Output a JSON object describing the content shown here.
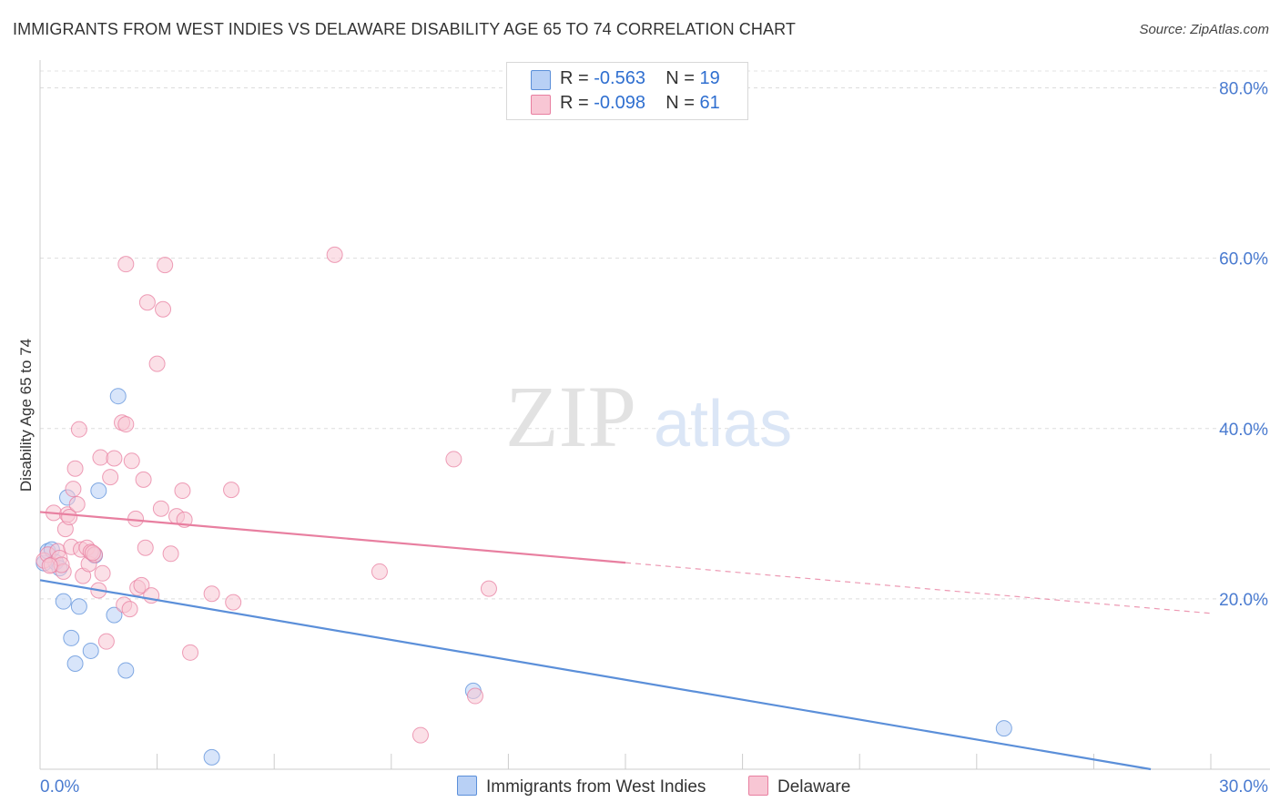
{
  "title": "IMMIGRANTS FROM WEST INDIES VS DELAWARE DISABILITY AGE 65 TO 74 CORRELATION CHART",
  "source": "Source: ZipAtlas.com",
  "watermark": {
    "zip": "ZIP",
    "atlas": "atlas"
  },
  "legend_top": [
    {
      "r_label": "R =",
      "r_value": "-0.563",
      "n_label": "N =",
      "n_value": "19",
      "fill": "#b8d0f5",
      "stroke": "#5b8fd9"
    },
    {
      "r_label": "R =",
      "r_value": "-0.098",
      "n_label": "N =",
      "n_value": "61",
      "fill": "#f8c6d4",
      "stroke": "#e87fa0"
    }
  ],
  "chart_data": {
    "type": "scatter",
    "title": "IMMIGRANTS FROM WEST INDIES VS DELAWARE DISABILITY AGE 65 TO 74 CORRELATION CHART",
    "xlabel": "",
    "ylabel": "Disability Age 65 to 74",
    "xlim": [
      0,
      30
    ],
    "ylim": [
      0,
      80
    ],
    "x_tick_labels": [
      "0.0%",
      "30.0%"
    ],
    "y_ticks": [
      20,
      40,
      60,
      80
    ],
    "y_tick_labels": [
      "20.0%",
      "40.0%",
      "60.0%",
      "80.0%"
    ],
    "grid": true,
    "legend_position": "bottom",
    "series": [
      {
        "name": "Immigrants from West Indies",
        "color": "#5b8fd9",
        "fill": "#b8d0f5",
        "trend": {
          "x0": 0,
          "y0": 22.2,
          "x1": 30,
          "y1": -1.2,
          "dash_from": null
        },
        "points": [
          [
            0.1,
            24.2
          ],
          [
            0.2,
            25.6
          ],
          [
            0.3,
            25.8
          ],
          [
            0.4,
            24.3
          ],
          [
            0.5,
            23.6
          ],
          [
            0.6,
            19.7
          ],
          [
            0.7,
            31.9
          ],
          [
            0.8,
            15.4
          ],
          [
            0.9,
            12.4
          ],
          [
            1.0,
            19.1
          ],
          [
            1.3,
            13.9
          ],
          [
            1.4,
            25.1
          ],
          [
            1.5,
            32.7
          ],
          [
            1.9,
            18.1
          ],
          [
            2.0,
            43.8
          ],
          [
            2.2,
            11.6
          ],
          [
            4.4,
            1.4
          ],
          [
            11.1,
            9.2
          ],
          [
            24.7,
            4.8
          ]
        ]
      },
      {
        "name": "Delaware",
        "color": "#e87fa0",
        "fill": "#f8c6d4",
        "trend": {
          "x0": 0,
          "y0": 30.2,
          "x1": 30,
          "y1": 18.3,
          "dash_from": 15.0
        },
        "points": [
          [
            0.1,
            24.5
          ],
          [
            0.2,
            25.2
          ],
          [
            0.3,
            24.0
          ],
          [
            0.35,
            30.1
          ],
          [
            0.45,
            25.6
          ],
          [
            0.5,
            24.8
          ],
          [
            0.6,
            23.2
          ],
          [
            0.65,
            28.2
          ],
          [
            0.7,
            29.9
          ],
          [
            0.75,
            29.6
          ],
          [
            0.8,
            26.1
          ],
          [
            0.85,
            32.9
          ],
          [
            0.9,
            35.3
          ],
          [
            0.95,
            31.1
          ],
          [
            1.0,
            39.9
          ],
          [
            1.05,
            25.8
          ],
          [
            1.1,
            22.7
          ],
          [
            1.2,
            26.0
          ],
          [
            1.25,
            24.1
          ],
          [
            1.3,
            25.5
          ],
          [
            1.4,
            25.2
          ],
          [
            1.5,
            21.0
          ],
          [
            1.55,
            36.6
          ],
          [
            1.6,
            23.0
          ],
          [
            1.7,
            15.0
          ],
          [
            1.8,
            34.3
          ],
          [
            1.9,
            36.5
          ],
          [
            2.1,
            40.7
          ],
          [
            2.2,
            40.5
          ],
          [
            2.15,
            19.3
          ],
          [
            2.2,
            59.3
          ],
          [
            2.3,
            18.8
          ],
          [
            2.35,
            36.2
          ],
          [
            2.45,
            29.4
          ],
          [
            2.5,
            21.3
          ],
          [
            2.6,
            21.6
          ],
          [
            2.65,
            34.0
          ],
          [
            2.7,
            26.0
          ],
          [
            2.75,
            54.8
          ],
          [
            2.85,
            20.4
          ],
          [
            3.0,
            47.6
          ],
          [
            3.1,
            30.6
          ],
          [
            3.15,
            54.0
          ],
          [
            3.2,
            59.2
          ],
          [
            3.35,
            25.3
          ],
          [
            3.5,
            29.7
          ],
          [
            3.65,
            32.7
          ],
          [
            3.7,
            29.3
          ],
          [
            3.85,
            13.7
          ],
          [
            4.4,
            20.6
          ],
          [
            4.9,
            32.8
          ],
          [
            4.95,
            19.6
          ],
          [
            7.55,
            60.4
          ],
          [
            8.7,
            23.2
          ],
          [
            9.75,
            4.0
          ],
          [
            10.6,
            36.4
          ],
          [
            11.5,
            21.2
          ],
          [
            11.15,
            8.6
          ],
          [
            0.55,
            24.0
          ],
          [
            0.25,
            23.9
          ],
          [
            1.35,
            25.4
          ]
        ]
      }
    ]
  }
}
